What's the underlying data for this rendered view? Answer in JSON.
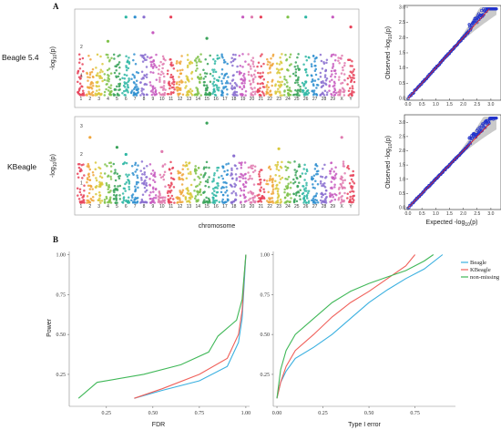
{
  "panels": {
    "a": "A",
    "b": "B"
  },
  "colors": {
    "chrom_palette": [
      "#e8435a",
      "#f0a53a",
      "#d9c83a",
      "#7fc24a",
      "#3aa35a",
      "#2fb7a4",
      "#2f8fd0",
      "#8a6fd0",
      "#c75bc0",
      "#e07bb0"
    ],
    "beagle": "#3ab0e0",
    "kbeagle": "#f0605a",
    "non_missing": "#40b858",
    "qq_points": "#2233cc",
    "qq_line": "#e02020",
    "qq_band": "#bdbdbd"
  },
  "chart_data": [
    {
      "type": "scatter",
      "id": "manhattan-beagle",
      "row_label": "Beagle 5.4",
      "ylabel_prefix": "-log",
      "ylabel_sub": "10",
      "ylabel_suffix": "(p)",
      "yticks": [
        "1",
        "2"
      ],
      "ylim": [
        0,
        3.2
      ],
      "x_categories": [
        "1",
        "2",
        "3",
        "4",
        "5",
        "6",
        "7",
        "8",
        "9",
        "10",
        "11",
        "12",
        "13",
        "14",
        "15",
        "16",
        "17",
        "18",
        "19",
        "20",
        "21",
        "22",
        "23",
        "24",
        "25",
        "26",
        "27",
        "28",
        "29",
        "X",
        "Y"
      ]
    },
    {
      "type": "scatter",
      "id": "manhattan-kbeagle",
      "row_label": "KBeagle",
      "ylabel_prefix": "-log",
      "ylabel_sub": "10",
      "ylabel_suffix": "(p)",
      "yticks": [
        "1",
        "2",
        "3"
      ],
      "ylim": [
        0,
        3.2
      ],
      "x_categories": [
        "1",
        "2",
        "3",
        "4",
        "5",
        "6",
        "7",
        "8",
        "9",
        "10",
        "11",
        "12",
        "13",
        "14",
        "15",
        "16",
        "17",
        "18",
        "19",
        "20",
        "21",
        "22",
        "23",
        "24",
        "25",
        "26",
        "27",
        "28",
        "29",
        "X",
        "Y"
      ],
      "xlabel": "chromosome"
    },
    {
      "type": "scatter",
      "id": "qq-beagle",
      "ylabel": "Observed  -log10(p)",
      "ylabel_prefix": "Observed  -log",
      "ylabel_sub": "10",
      "ylabel_suffix": "(p)",
      "xlim": [
        0,
        3.3
      ],
      "ylim": [
        0,
        3.0
      ],
      "xticks": [
        "0.0",
        "0.5",
        "1.0",
        "1.5",
        "2.0",
        "2.5",
        "3.0"
      ],
      "yticks": [
        "0.0",
        "0.5",
        "1.0",
        "1.5",
        "2.0",
        "2.5",
        "3.0"
      ]
    },
    {
      "type": "scatter",
      "id": "qq-kbeagle",
      "ylabel_prefix": "Observed  -log",
      "ylabel_sub": "10",
      "ylabel_suffix": "(p)",
      "xlabel_prefix": "Expected  -log",
      "xlabel_sub": "10",
      "xlabel_suffix": "(p)",
      "xlim": [
        0,
        3.3
      ],
      "ylim": [
        0,
        3.2
      ],
      "xticks": [
        "0.0",
        "0.5",
        "1.0",
        "1.5",
        "2.0",
        "2.5",
        "3.0"
      ],
      "yticks": [
        "0.0",
        "0.5",
        "1.0",
        "1.5",
        "2.0",
        "2.5",
        "3.0"
      ]
    },
    {
      "type": "line",
      "id": "power-vs-fdr",
      "xlabel": "FDR",
      "ylabel": "Power",
      "xlim": [
        0.05,
        1.02
      ],
      "ylim": [
        0.05,
        1.02
      ],
      "xticks": [
        "0.25",
        "0.50",
        "0.75",
        "1.00"
      ],
      "yticks": [
        "0.25",
        "0.50",
        "0.75",
        "1.00"
      ],
      "series": [
        {
          "name": "Beagle",
          "x": [
            0.4,
            0.55,
            0.75,
            0.9,
            0.96,
            0.98,
            0.99,
            1.0
          ],
          "y": [
            0.1,
            0.15,
            0.21,
            0.3,
            0.45,
            0.6,
            0.8,
            1.0
          ]
        },
        {
          "name": "KBeagle",
          "x": [
            0.4,
            0.55,
            0.75,
            0.9,
            0.96,
            0.98,
            0.99,
            1.0
          ],
          "y": [
            0.1,
            0.16,
            0.25,
            0.35,
            0.5,
            0.65,
            0.85,
            1.0
          ]
        },
        {
          "name": "non-missing",
          "x": [
            0.1,
            0.2,
            0.45,
            0.65,
            0.8,
            0.85,
            0.95,
            0.98,
            1.0
          ],
          "y": [
            0.1,
            0.2,
            0.25,
            0.31,
            0.39,
            0.49,
            0.59,
            0.72,
            1.0
          ]
        }
      ]
    },
    {
      "type": "line",
      "id": "power-vs-type1",
      "xlabel": "Type I error",
      "xlim": [
        -0.02,
        0.97
      ],
      "ylim": [
        0.05,
        1.02
      ],
      "xticks": [
        "0.00",
        "0.25",
        "0.50",
        "0.75"
      ],
      "yticks": [
        "0.25",
        "0.50",
        "0.75",
        "1.00"
      ],
      "legend_position": "top-right",
      "series": [
        {
          "name": "Beagle",
          "x": [
            0.0,
            0.02,
            0.05,
            0.1,
            0.2,
            0.3,
            0.4,
            0.5,
            0.6,
            0.7,
            0.8,
            0.9
          ],
          "y": [
            0.1,
            0.2,
            0.27,
            0.35,
            0.42,
            0.5,
            0.6,
            0.7,
            0.78,
            0.85,
            0.91,
            1.0
          ]
        },
        {
          "name": "KBeagle",
          "x": [
            0.0,
            0.02,
            0.05,
            0.1,
            0.2,
            0.3,
            0.4,
            0.5,
            0.6,
            0.7,
            0.75
          ],
          "y": [
            0.1,
            0.2,
            0.3,
            0.4,
            0.5,
            0.61,
            0.7,
            0.77,
            0.85,
            0.93,
            1.0
          ]
        },
        {
          "name": "non-missing",
          "x": [
            0.0,
            0.02,
            0.05,
            0.1,
            0.2,
            0.3,
            0.4,
            0.5,
            0.6,
            0.7,
            0.8,
            0.85
          ],
          "y": [
            0.1,
            0.28,
            0.4,
            0.5,
            0.6,
            0.7,
            0.77,
            0.82,
            0.86,
            0.9,
            0.96,
            1.0
          ]
        }
      ]
    }
  ]
}
